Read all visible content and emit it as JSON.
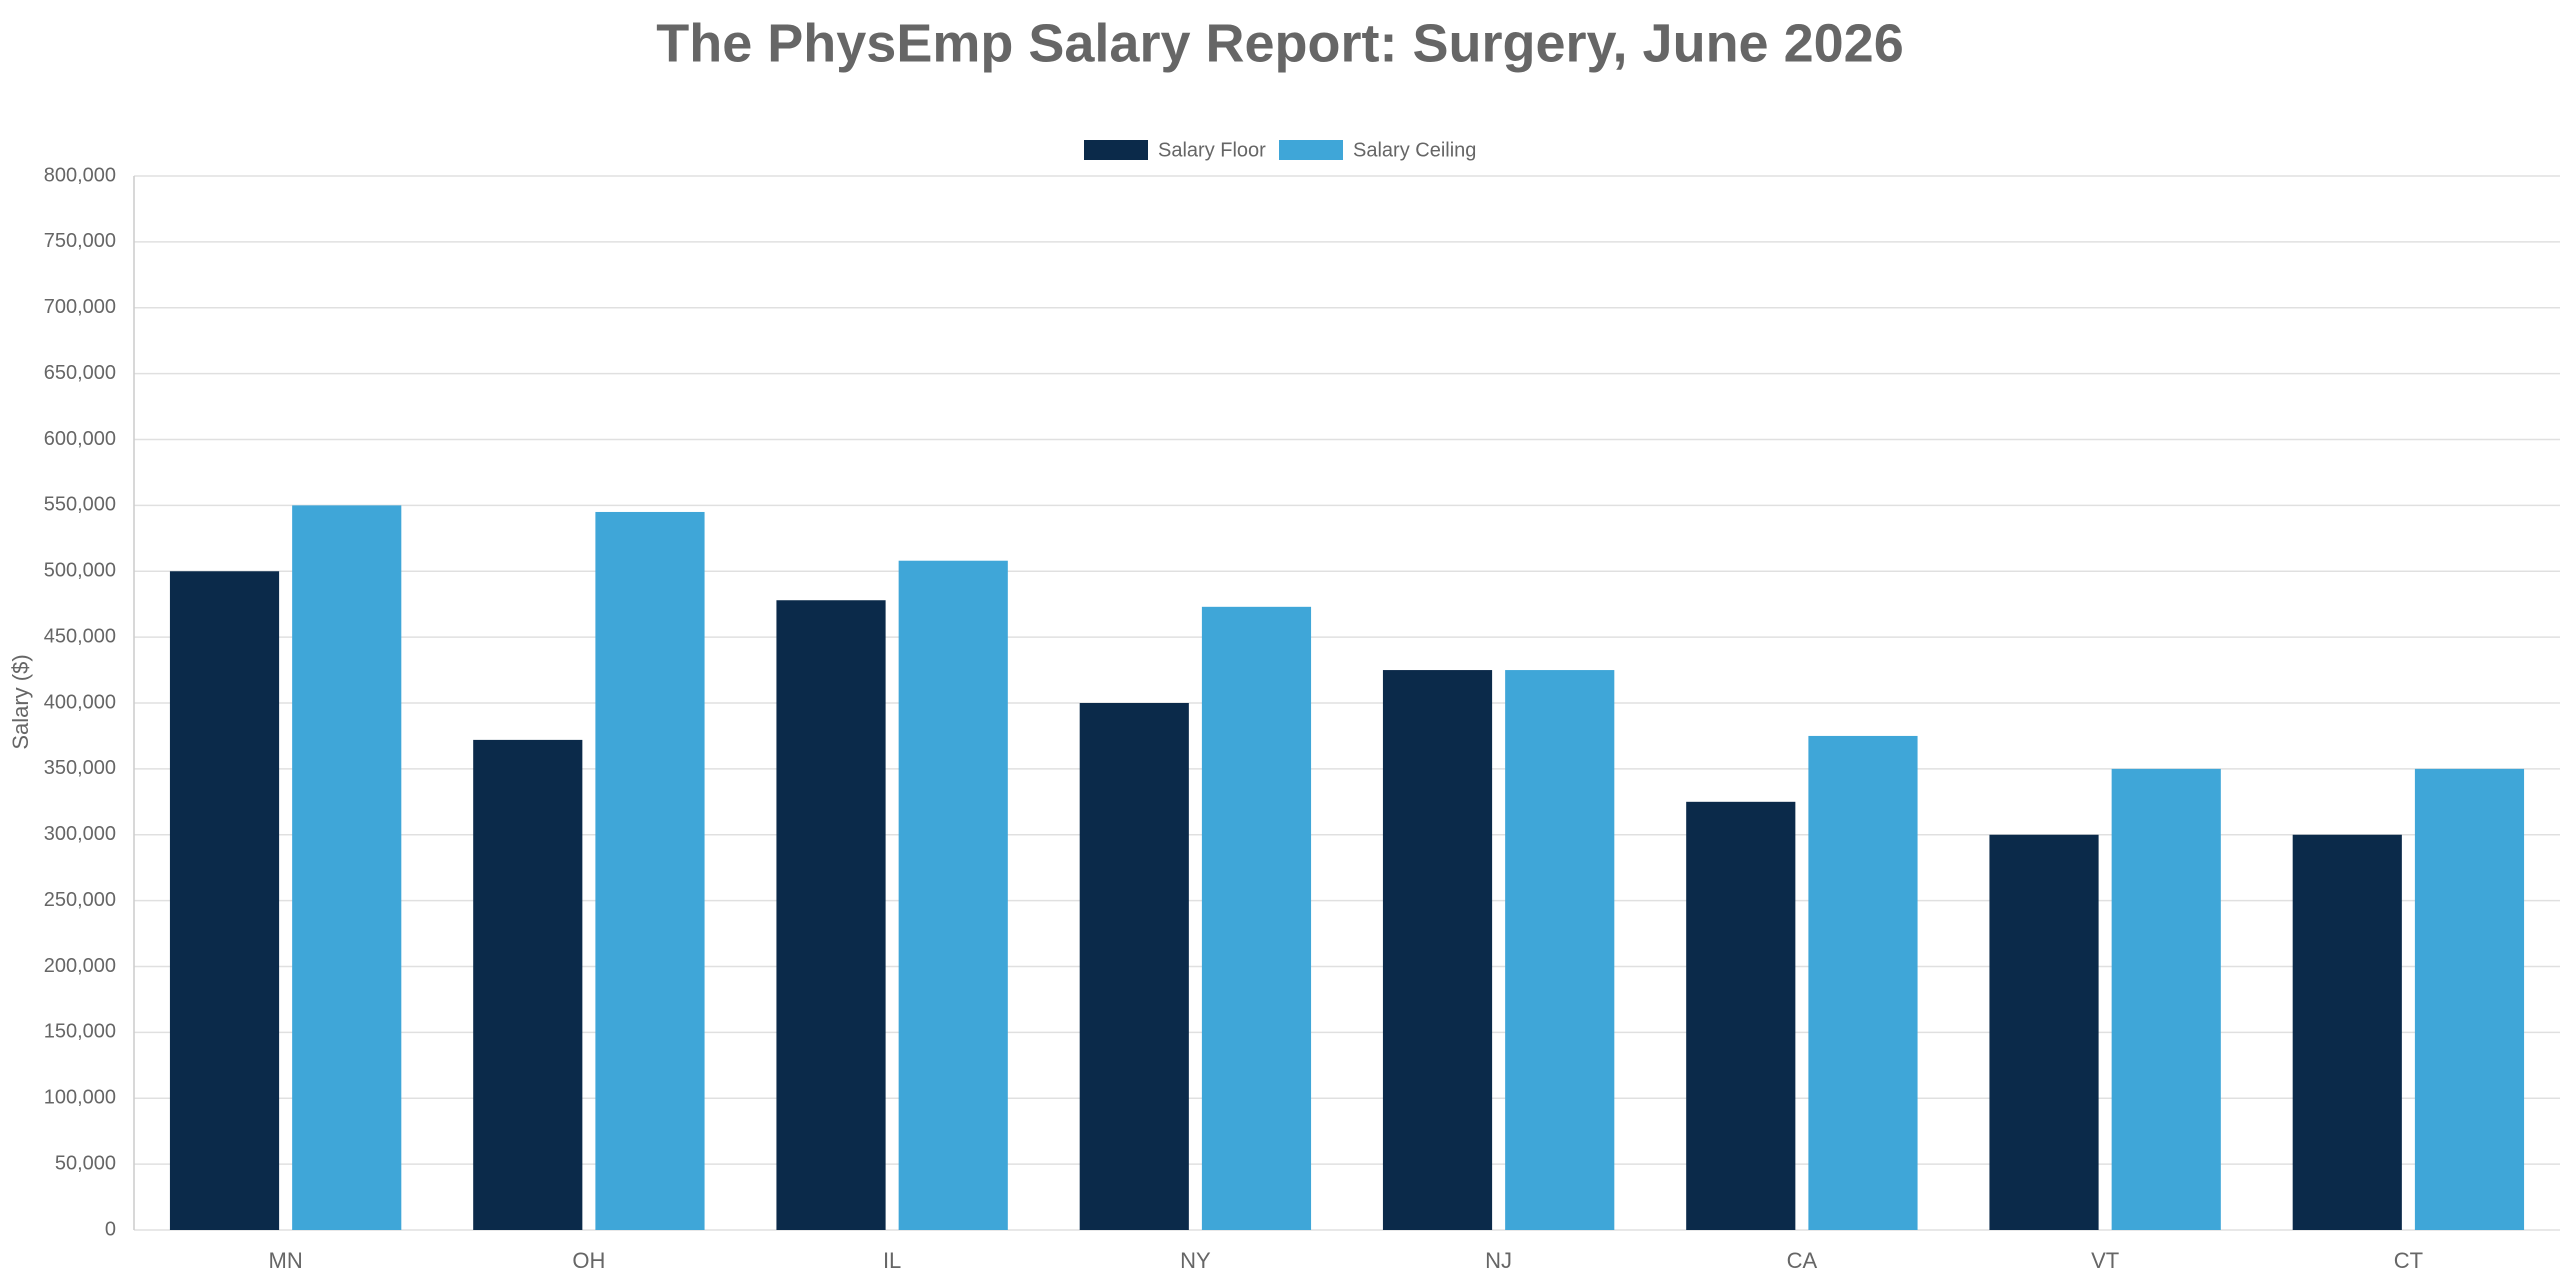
{
  "chart_data": {
    "type": "bar",
    "title": "The PhysEmp Salary Report: Surgery, June 2026",
    "y_label": "Salary ($)",
    "categories": [
      "MN",
      "OH",
      "IL",
      "NY",
      "NJ",
      "CA",
      "VT",
      "CT"
    ],
    "series": [
      {
        "name": "Salary Floor",
        "color": "#0b2a4a",
        "values": [
          500000,
          372000,
          478000,
          400000,
          425000,
          325000,
          300000,
          300000
        ]
      },
      {
        "name": "Salary Ceiling",
        "color": "#3fa6d8",
        "values": [
          550000,
          545000,
          508000,
          473000,
          425000,
          375000,
          350000,
          350000
        ]
      }
    ],
    "ylim": [
      0,
      800000
    ],
    "yticks": [
      0,
      {
        "value": 50000,
        "label": "50,000"
      },
      {
        "value": 100000,
        "label": "100,000"
      },
      {
        "value": 150000,
        "label": "150,000"
      },
      {
        "value": 200000,
        "label": "200,000"
      },
      {
        "value": 250000,
        "label": "250,000"
      },
      {
        "value": 300000,
        "label": "300,000"
      },
      {
        "value": 350000,
        "label": "350,000"
      },
      {
        "value": 400000,
        "label": "400,000"
      },
      {
        "value": 450000,
        "label": "450,000"
      },
      {
        "value": 500000,
        "label": "500,000"
      },
      {
        "value": 550000,
        "label": "550,000"
      },
      {
        "value": 600000,
        "label": "600,000"
      },
      {
        "value": 650000,
        "label": "650,000"
      },
      {
        "value": 700000,
        "label": "700,000"
      },
      {
        "value": 750000,
        "label": "750,000"
      },
      {
        "value": 800000,
        "label": "800,000"
      }
    ],
    "grid": true,
    "legend": "top"
  }
}
